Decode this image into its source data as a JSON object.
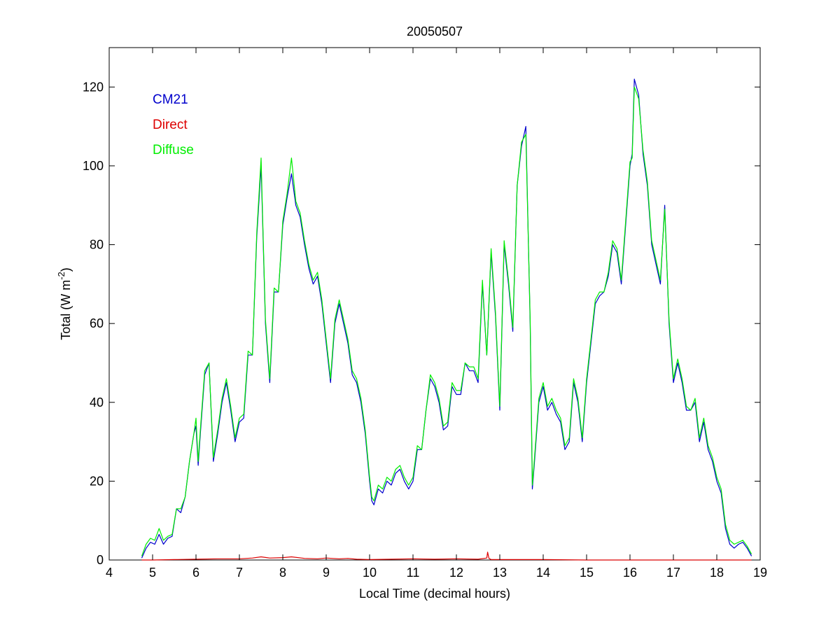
{
  "chart_data": {
    "type": "line",
    "title": "20050507",
    "xlabel": "Local Time (decimal hours)",
    "ylabel_prefix": "Total (W m",
    "ylabel_superscript": "-2",
    "ylabel_suffix": ")",
    "xlim": [
      4,
      19
    ],
    "ylim": [
      0,
      130
    ],
    "xticks": [
      4,
      5,
      6,
      7,
      8,
      9,
      10,
      11,
      12,
      13,
      14,
      15,
      16,
      17,
      18,
      19
    ],
    "yticks": [
      0,
      20,
      40,
      60,
      80,
      100,
      120
    ],
    "grid": false,
    "legend_position": "top-left",
    "colors": {
      "cm21": "#0000cc",
      "direct": "#dd0000",
      "diffuse": "#00ee00"
    },
    "series": [
      {
        "name": "CM21",
        "color": "#0000cc",
        "x": [
          4.75,
          4.85,
          4.95,
          5.05,
          5.15,
          5.25,
          5.35,
          5.45,
          5.55,
          5.65,
          5.75,
          5.85,
          5.95,
          6.0,
          6.05,
          6.1,
          6.2,
          6.3,
          6.4,
          6.5,
          6.6,
          6.7,
          6.8,
          6.9,
          7.0,
          7.1,
          7.2,
          7.3,
          7.4,
          7.5,
          7.55,
          7.6,
          7.7,
          7.8,
          7.9,
          8.0,
          8.1,
          8.2,
          8.3,
          8.4,
          8.5,
          8.6,
          8.7,
          8.8,
          8.9,
          9.0,
          9.1,
          9.2,
          9.3,
          9.4,
          9.5,
          9.6,
          9.7,
          9.8,
          9.9,
          10.0,
          10.05,
          10.1,
          10.2,
          10.3,
          10.4,
          10.5,
          10.6,
          10.7,
          10.8,
          10.9,
          11.0,
          11.1,
          11.2,
          11.3,
          11.4,
          11.5,
          11.6,
          11.7,
          11.8,
          11.9,
          12.0,
          12.1,
          12.2,
          12.3,
          12.4,
          12.5,
          12.6,
          12.7,
          12.8,
          12.9,
          13.0,
          13.1,
          13.2,
          13.3,
          13.4,
          13.5,
          13.6,
          13.7,
          13.75,
          13.8,
          13.9,
          14.0,
          14.1,
          14.2,
          14.3,
          14.4,
          14.5,
          14.6,
          14.7,
          14.8,
          14.9,
          15.0,
          15.1,
          15.2,
          15.3,
          15.4,
          15.5,
          15.6,
          15.7,
          15.8,
          15.9,
          16.0,
          16.05,
          16.1,
          16.2,
          16.3,
          16.4,
          16.5,
          16.6,
          16.7,
          16.8,
          16.9,
          17.0,
          17.1,
          17.2,
          17.3,
          17.4,
          17.5,
          17.6,
          17.7,
          17.8,
          17.9,
          18.0,
          18.1,
          18.2,
          18.3,
          18.4,
          18.5,
          18.6,
          18.7,
          18.8
        ],
        "y": [
          0.5,
          3,
          4.5,
          4,
          6.5,
          4,
          5.5,
          6,
          13,
          12,
          16,
          25,
          32,
          34,
          24,
          32,
          47,
          50,
          25,
          32,
          40,
          45,
          38,
          30,
          35,
          36,
          52,
          52,
          82,
          100,
          80,
          60,
          45,
          68,
          68,
          85,
          92,
          98,
          90,
          87,
          80,
          74,
          70,
          72,
          65,
          55,
          45,
          60,
          65,
          60,
          55,
          47,
          45,
          40,
          32,
          20,
          15,
          14,
          18,
          17,
          20,
          19,
          22,
          23,
          20,
          18,
          20,
          28,
          28,
          38,
          46,
          44,
          40,
          33,
          34,
          44,
          42,
          42,
          50,
          48,
          48,
          45,
          70,
          52,
          78,
          62,
          38,
          80,
          70,
          58,
          95,
          105,
          110,
          60,
          18,
          25,
          40,
          44,
          38,
          40,
          37,
          35,
          28,
          30,
          45,
          40,
          30,
          45,
          55,
          65,
          67,
          68,
          72,
          80,
          78,
          70,
          85,
          100,
          103,
          122,
          118,
          103,
          95,
          80,
          75,
          70,
          90,
          60,
          45,
          50,
          45,
          38,
          38,
          40,
          30,
          35,
          28,
          25,
          20,
          17,
          8,
          4,
          3,
          4,
          4.5,
          3,
          1
        ]
      },
      {
        "name": "Direct",
        "color": "#dd0000",
        "x": [
          4.75,
          5.0,
          5.5,
          6.0,
          6.5,
          7.0,
          7.3,
          7.5,
          7.7,
          8.0,
          8.2,
          8.5,
          8.8,
          9.0,
          9.3,
          9.5,
          9.7,
          10.0,
          10.5,
          11.0,
          11.5,
          12.0,
          12.5,
          12.7,
          12.72,
          12.75,
          12.8,
          13.0,
          14.0,
          15.0,
          16.0,
          17.0,
          18.0,
          18.8
        ],
        "y": [
          0,
          0,
          0.1,
          0.2,
          0.3,
          0.3,
          0.5,
          0.8,
          0.5,
          0.6,
          0.8,
          0.4,
          0.3,
          0.5,
          0.3,
          0.4,
          0.2,
          0.1,
          0.2,
          0.3,
          0.2,
          0.3,
          0.2,
          0.5,
          2,
          0.4,
          0.1,
          0.1,
          0.1,
          0,
          0,
          0,
          0,
          0
        ]
      },
      {
        "name": "Diffuse",
        "color": "#00ee00",
        "x": [
          4.75,
          4.85,
          4.95,
          5.05,
          5.15,
          5.25,
          5.35,
          5.45,
          5.55,
          5.65,
          5.75,
          5.85,
          5.95,
          6.0,
          6.05,
          6.1,
          6.2,
          6.3,
          6.4,
          6.5,
          6.6,
          6.7,
          6.8,
          6.9,
          7.0,
          7.1,
          7.2,
          7.3,
          7.4,
          7.5,
          7.55,
          7.6,
          7.7,
          7.8,
          7.9,
          8.0,
          8.1,
          8.2,
          8.3,
          8.4,
          8.5,
          8.6,
          8.7,
          8.8,
          8.9,
          9.0,
          9.1,
          9.2,
          9.3,
          9.4,
          9.5,
          9.6,
          9.7,
          9.8,
          9.9,
          10.0,
          10.05,
          10.1,
          10.2,
          10.3,
          10.4,
          10.5,
          10.6,
          10.7,
          10.8,
          10.9,
          11.0,
          11.1,
          11.2,
          11.3,
          11.4,
          11.5,
          11.6,
          11.7,
          11.8,
          11.9,
          12.0,
          12.1,
          12.2,
          12.3,
          12.4,
          12.5,
          12.6,
          12.7,
          12.8,
          12.9,
          13.0,
          13.1,
          13.2,
          13.3,
          13.4,
          13.5,
          13.6,
          13.7,
          13.75,
          13.8,
          13.9,
          14.0,
          14.1,
          14.2,
          14.3,
          14.4,
          14.5,
          14.6,
          14.7,
          14.8,
          14.9,
          15.0,
          15.1,
          15.2,
          15.3,
          15.4,
          15.5,
          15.6,
          15.7,
          15.8,
          15.9,
          16.0,
          16.05,
          16.1,
          16.2,
          16.3,
          16.4,
          16.5,
          16.6,
          16.7,
          16.8,
          16.9,
          17.0,
          17.1,
          17.2,
          17.3,
          17.4,
          17.5,
          17.6,
          17.7,
          17.8,
          17.9,
          18.0,
          18.1,
          18.2,
          18.3,
          18.4,
          18.5,
          18.6,
          18.7,
          18.8
        ],
        "y": [
          1,
          4,
          5.5,
          5,
          8,
          5,
          6,
          6.5,
          13,
          13,
          16,
          25,
          32,
          36,
          25,
          33,
          48,
          50,
          26,
          33,
          41,
          46,
          39,
          31,
          36,
          37,
          53,
          52,
          83,
          102,
          81,
          61,
          46,
          69,
          68,
          86,
          93,
          102,
          91,
          88,
          81,
          75,
          71,
          73,
          66,
          56,
          46,
          61,
          66,
          61,
          56,
          48,
          46,
          41,
          33,
          21,
          16,
          15,
          19,
          18,
          21,
          20,
          23,
          24,
          21,
          19,
          21,
          29,
          28,
          38,
          47,
          45,
          41,
          34,
          35,
          45,
          43,
          43,
          50,
          49,
          49,
          46,
          71,
          52,
          79,
          63,
          39,
          81,
          71,
          59,
          95,
          106,
          108,
          61,
          19,
          26,
          41,
          45,
          39,
          41,
          38,
          36,
          29,
          31,
          46,
          41,
          31,
          46,
          56,
          66,
          68,
          68,
          73,
          81,
          79,
          71,
          86,
          101,
          102,
          120,
          117,
          104,
          96,
          81,
          76,
          71,
          89,
          61,
          46,
          51,
          46,
          39,
          38,
          41,
          31,
          36,
          29,
          26,
          21,
          18,
          9,
          5,
          4,
          4.5,
          5,
          3.5,
          1.5
        ]
      }
    ]
  }
}
